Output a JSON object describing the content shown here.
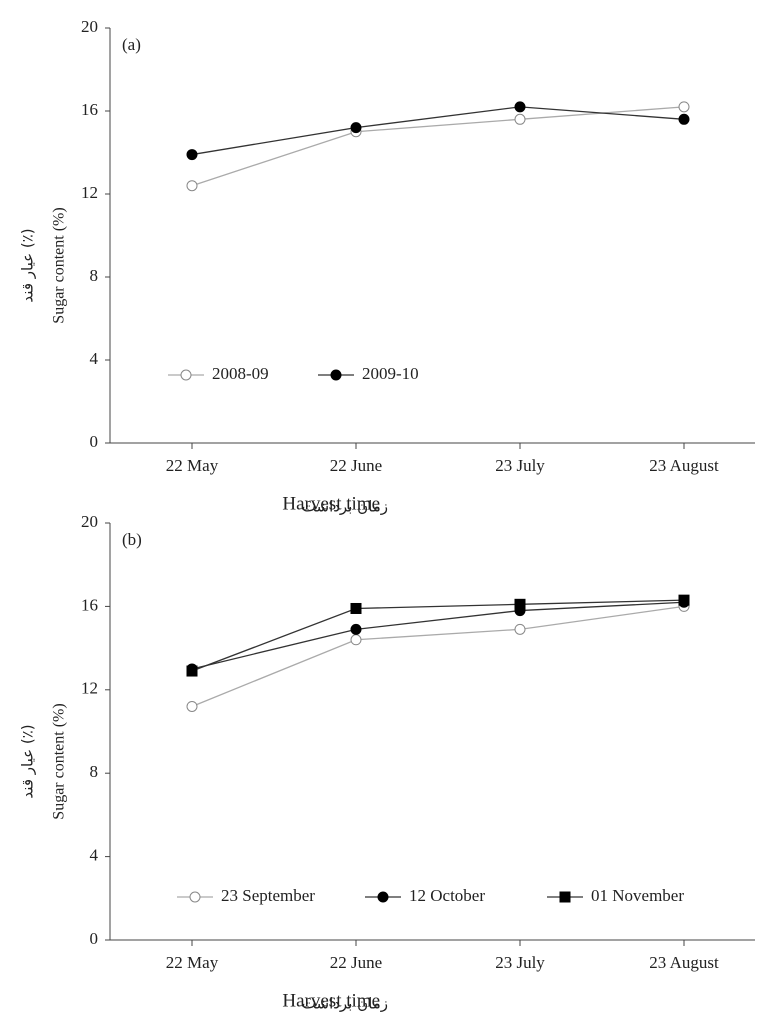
{
  "chart_data": [
    {
      "type": "line",
      "panel": "(a)",
      "ylabel": "Sugar content (%)",
      "ylabel_fa": "عيار قند (٪)",
      "xlabel": "Harvest time",
      "xlabel_fa": "زمان برداشت",
      "categories": [
        "22 May",
        "22 June",
        "23 July",
        "23 August"
      ],
      "ylim": [
        0,
        20
      ],
      "yticks": [
        0,
        4,
        8,
        12,
        16,
        20
      ],
      "series": [
        {
          "name": "2008-09",
          "color": "#a0a0a0",
          "marker": "circle",
          "filled": false,
          "values": [
            12.4,
            15.0,
            15.6,
            16.2
          ]
        },
        {
          "name": "2009-10",
          "color": "#000000",
          "marker": "circle",
          "filled": true,
          "values": [
            13.9,
            15.2,
            16.2,
            15.6
          ]
        }
      ]
    },
    {
      "type": "line",
      "panel": "(b)",
      "ylabel": "Sugar content (%)",
      "ylabel_fa": "عيار قند (٪)",
      "xlabel": "Harvest time",
      "xlabel_fa": "زمان برداشت",
      "categories": [
        "22 May",
        "22 June",
        "23 July",
        "23 August"
      ],
      "ylim": [
        0,
        20
      ],
      "yticks": [
        0,
        4,
        8,
        12,
        16,
        20
      ],
      "series": [
        {
          "name": "23 September",
          "color": "#a0a0a0",
          "marker": "circle",
          "filled": false,
          "values": [
            11.2,
            14.4,
            14.9,
            16.0
          ]
        },
        {
          "name": "12 October",
          "color": "#000000",
          "marker": "circle",
          "filled": true,
          "values": [
            13.0,
            14.9,
            15.8,
            16.2
          ]
        },
        {
          "name": "01 November",
          "color": "#000000",
          "marker": "square",
          "filled": true,
          "values": [
            12.9,
            15.9,
            16.1,
            16.3
          ]
        }
      ]
    }
  ]
}
